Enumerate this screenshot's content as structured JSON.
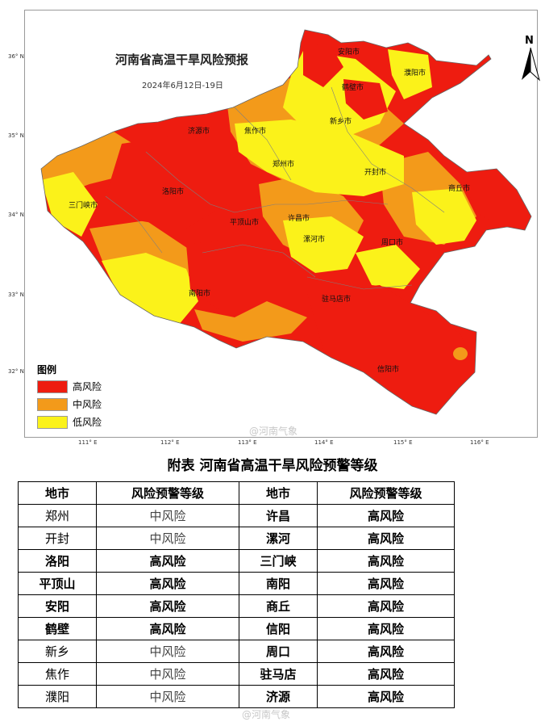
{
  "map": {
    "title": "河南省高温干旱风险预报",
    "date": "2024年6月12日-19日",
    "north_label": "N",
    "colors": {
      "high": "#ee1c10",
      "medium": "#f39a1a",
      "low": "#fbf21a"
    },
    "latitudes": [
      "36° N",
      "35° N",
      "34° N",
      "33° N",
      "32° N"
    ],
    "longitudes": [
      "111° E",
      "112° E",
      "113° E",
      "114° E",
      "115° E",
      "116° E"
    ],
    "cities": [
      "安阳市",
      "濮阳市",
      "鹤壁市",
      "新乡市",
      "济源市",
      "焦作市",
      "郑州市",
      "开封市",
      "商丘市",
      "三门峡市",
      "洛阳市",
      "平顶山市",
      "许昌市",
      "漯河市",
      "周口市",
      "南阳市",
      "驻马店市",
      "信阳市"
    ],
    "legend": {
      "title": "图例",
      "items": [
        {
          "label": "高风险",
          "color": "#ee1c10"
        },
        {
          "label": "中风险",
          "color": "#f39a1a"
        },
        {
          "label": "低风险",
          "color": "#fbf21a"
        }
      ]
    },
    "watermark": "@河南气象"
  },
  "table": {
    "title": "附表  河南省高温干旱风险预警等级",
    "headers": [
      "地市",
      "风险预警等级",
      "地市",
      "风险预警等级"
    ],
    "rows": [
      [
        "郑州",
        "中风险",
        "许昌",
        "高风险"
      ],
      [
        "开封",
        "中风险",
        "漯河",
        "高风险"
      ],
      [
        "洛阳",
        "高风险",
        "三门峡",
        "高风险"
      ],
      [
        "平顶山",
        "高风险",
        "南阳",
        "高风险"
      ],
      [
        "安阳",
        "高风险",
        "商丘",
        "高风险"
      ],
      [
        "鹤壁",
        "高风险",
        "信阳",
        "高风险"
      ],
      [
        "新乡",
        "中风险",
        "周口",
        "高风险"
      ],
      [
        "焦作",
        "中风险",
        "驻马店",
        "高风险"
      ],
      [
        "濮阳",
        "中风险",
        "济源",
        "高风险"
      ]
    ],
    "watermark": "@河南气象"
  }
}
